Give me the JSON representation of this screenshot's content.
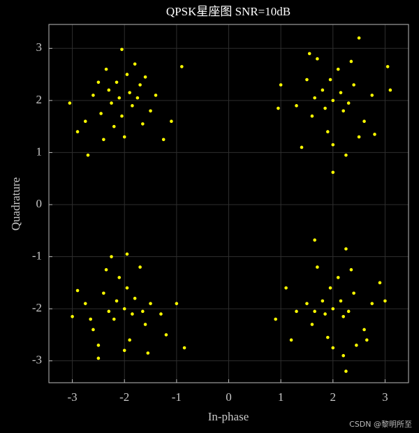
{
  "chart_data": {
    "type": "scatter",
    "title": "QPSK星座图 SNR=10dB",
    "xlabel": "In-phase",
    "ylabel": "Quadrature",
    "color": "#ffff00",
    "grid": true,
    "xlim": [
      -3.45,
      3.45
    ],
    "ylim": [
      -3.42,
      3.46
    ],
    "xticks": [
      -3,
      -2,
      -1,
      0,
      1,
      2,
      3
    ],
    "yticks": [
      -3,
      -2,
      -1,
      0,
      1,
      2,
      3
    ],
    "x": [
      -2.1,
      -1.85,
      -2.3,
      -1.7,
      -2.45,
      -1.95,
      -2.6,
      -1.5,
      -2.2,
      -1.8,
      -2.75,
      -1.4,
      -2.0,
      -2.35,
      -1.65,
      -2.5,
      -1.9,
      -2.05,
      -1.75,
      -2.25,
      -3.05,
      -0.9,
      -2.7,
      -2.05,
      -1.25,
      -1.1,
      -2.9,
      -2.15,
      -1.6,
      -2.4,
      2.0,
      1.8,
      2.2,
      2.4,
      1.6,
      2.1,
      1.5,
      2.6,
      1.9,
      2.35,
      1.3,
      2.75,
      2.0,
      1.7,
      2.5,
      1.85,
      2.15,
      1.95,
      2.3,
      1.65,
      0.95,
      3.05,
      2.0,
      2.5,
      1.4,
      1.0,
      3.1,
      2.8,
      1.55,
      2.25,
      -2.0,
      -1.8,
      -2.2,
      -2.4,
      -1.6,
      -2.1,
      -1.5,
      -2.6,
      -1.9,
      -2.35,
      -1.3,
      -2.75,
      -2.0,
      -1.7,
      -2.5,
      -1.85,
      -2.15,
      -1.95,
      -2.3,
      -1.65,
      -3.0,
      -0.85,
      -2.5,
      -1.95,
      -1.0,
      -2.9,
      -1.2,
      -2.25,
      -1.55,
      -2.65,
      2.0,
      1.8,
      2.2,
      2.4,
      1.6,
      2.1,
      1.5,
      2.6,
      1.9,
      2.35,
      1.3,
      2.75,
      2.0,
      1.7,
      2.45,
      1.85,
      2.15,
      1.95,
      2.3,
      1.65,
      0.9,
      3.0,
      2.25,
      1.65,
      2.25,
      1.1,
      2.9,
      1.2,
      2.2,
      2.65
    ],
    "values": [
      2.05,
      1.9,
      2.2,
      2.3,
      1.75,
      2.5,
      2.1,
      1.8,
      1.5,
      2.7,
      1.6,
      2.1,
      1.3,
      2.6,
      1.55,
      2.35,
      2.15,
      1.7,
      2.05,
      1.95,
      1.95,
      2.65,
      0.95,
      2.98,
      1.25,
      1.6,
      1.4,
      2.35,
      2.45,
      1.25,
      2.0,
      2.2,
      1.8,
      2.3,
      1.7,
      2.6,
      2.4,
      1.6,
      1.4,
      2.75,
      1.9,
      2.1,
      1.15,
      2.8,
      1.3,
      1.85,
      2.15,
      2.4,
      1.95,
      2.05,
      1.85,
      2.65,
      0.62,
      3.2,
      1.1,
      2.3,
      2.2,
      1.35,
      2.9,
      0.95,
      -2.0,
      -1.8,
      -2.2,
      -1.7,
      -2.3,
      -1.4,
      -1.9,
      -2.4,
      -2.6,
      -1.25,
      -2.1,
      -1.9,
      -2.8,
      -1.2,
      -2.7,
      -2.1,
      -1.85,
      -1.6,
      -2.05,
      -2.05,
      -2.15,
      -2.75,
      -2.95,
      -0.95,
      -1.9,
      -1.65,
      -2.5,
      -1.0,
      -2.85,
      -2.2,
      -2.0,
      -1.85,
      -2.15,
      -1.7,
      -2.3,
      -1.4,
      -1.9,
      -2.4,
      -2.55,
      -1.25,
      -2.05,
      -1.9,
      -2.75,
      -1.2,
      -2.7,
      -2.1,
      -1.85,
      -1.6,
      -2.05,
      -2.05,
      -2.2,
      -1.85,
      -3.2,
      -0.68,
      -0.85,
      -1.6,
      -1.5,
      -2.6,
      -2.9,
      -2.6
    ]
  },
  "watermark": "CSDN @黎明所至"
}
